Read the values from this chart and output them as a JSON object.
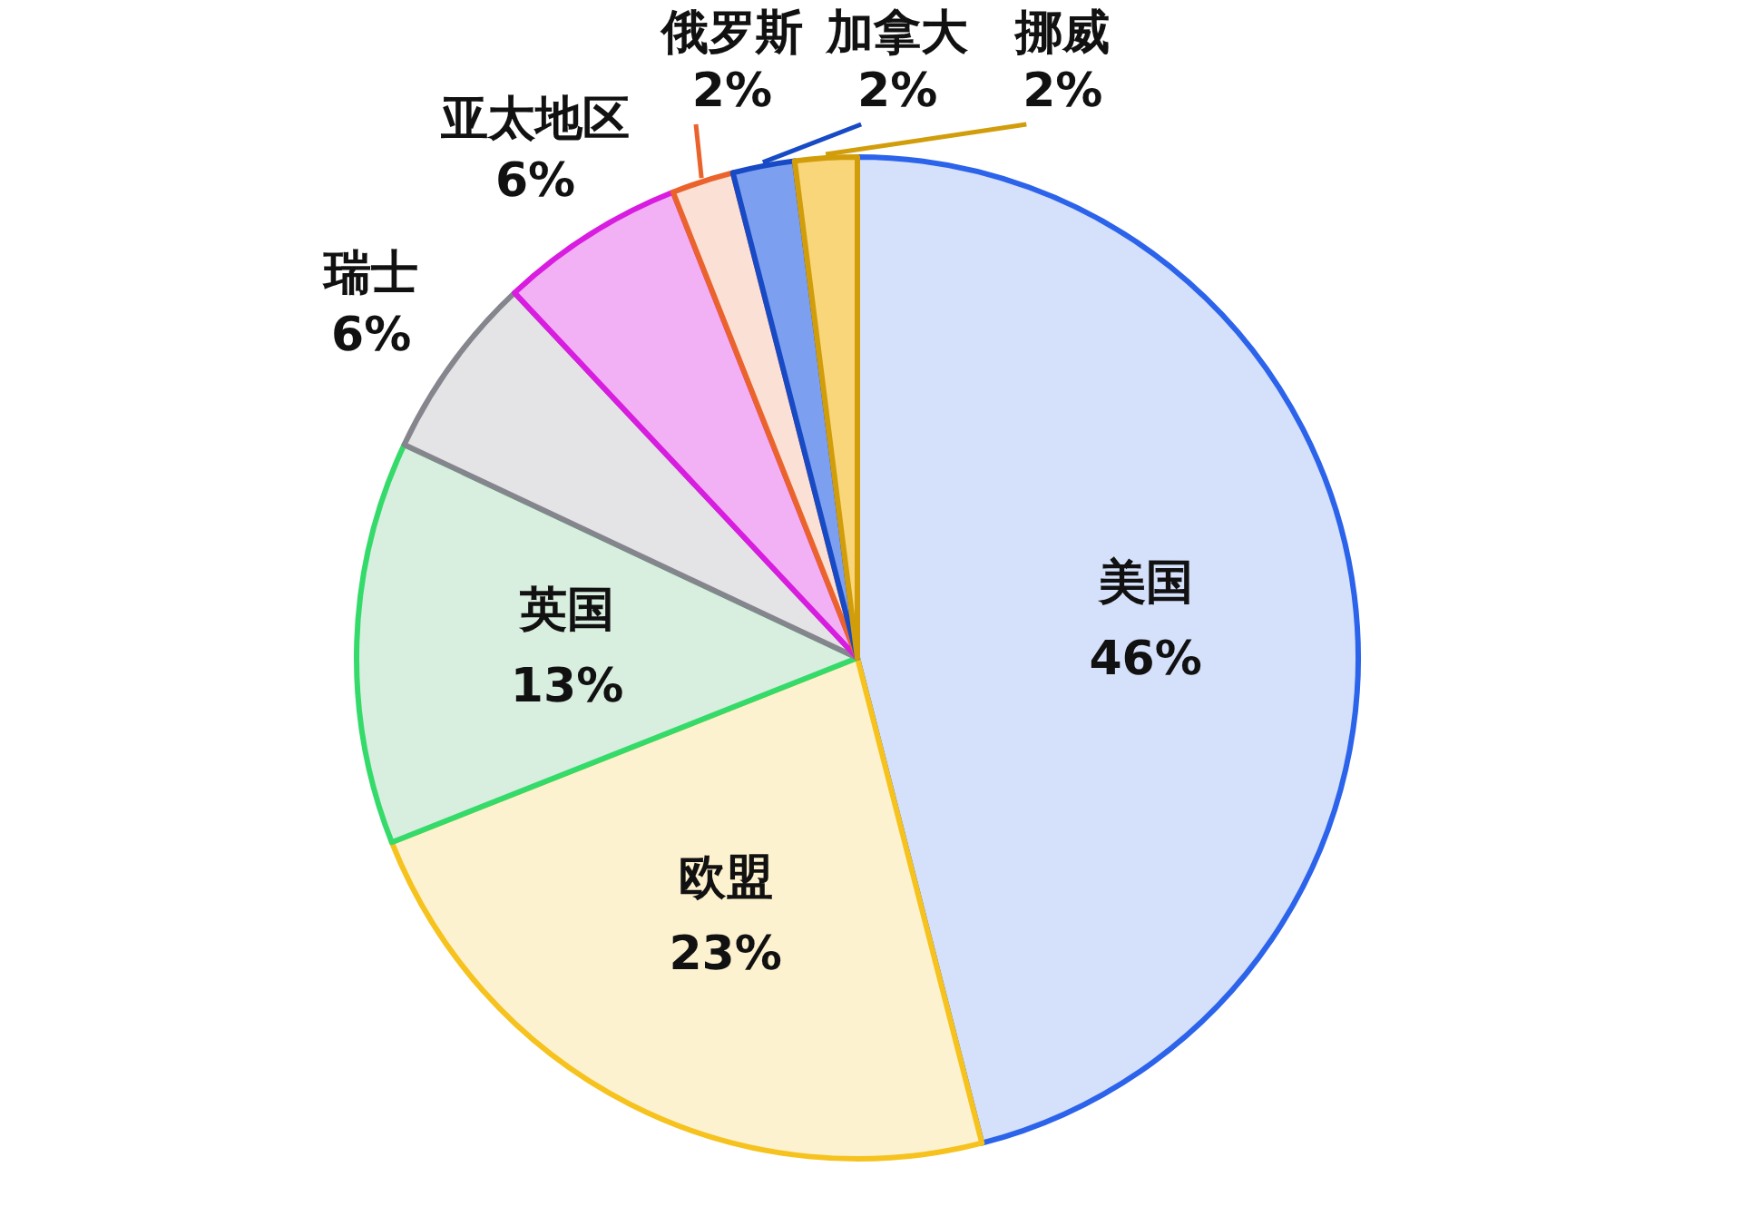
{
  "chart_data": {
    "type": "pie",
    "categories": [
      "美国",
      "欧盟",
      "英国",
      "瑞士",
      "亚太地区",
      "俄罗斯",
      "加拿大",
      "挪威"
    ],
    "values": [
      46,
      23,
      13,
      6,
      6,
      2,
      2,
      2
    ],
    "colors": [
      "#d5e0fb",
      "#fdf2cf",
      "#d8eedf",
      "#e4e4e6",
      "#f2b0f5",
      "#fbe0d5",
      "#7d9ff0",
      "#f8d679"
    ],
    "value_labels": [
      "46%",
      "23%",
      "13%",
      "6%",
      "6%",
      "2%",
      "2%",
      "2%"
    ]
  }
}
